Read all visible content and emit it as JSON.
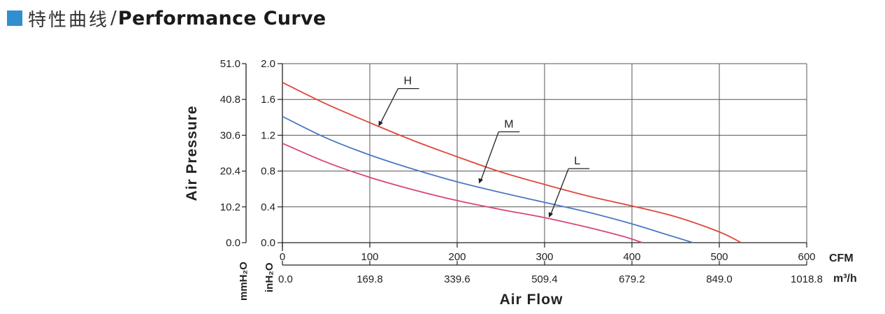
{
  "header": {
    "title_cn": "特性曲线",
    "separator": "/",
    "title_en": "Performance Curve",
    "accent_color": "#2f8fcf"
  },
  "chart_data": {
    "type": "line",
    "ylabel": "Air Pressure",
    "xlabel": "Air Flow",
    "x_unit_primary": "CFM",
    "x_unit_secondary": "m³/h",
    "y_unit_primary": "inH₂O",
    "y_unit_secondary": "mmH₂O",
    "xlim": [
      0,
      600
    ],
    "ylim": [
      0,
      2.0
    ],
    "x_ticks": [
      "0",
      "100",
      "200",
      "300",
      "400",
      "500",
      "600"
    ],
    "x_ticks_secondary": [
      "0.0",
      "169.8",
      "339.6",
      "509.4",
      "679.2",
      "849.0",
      "1018.8"
    ],
    "y_ticks": [
      "0.0",
      "0.4",
      "0.8",
      "1.2",
      "1.6",
      "2.0"
    ],
    "y_ticks_secondary": [
      "0.0",
      "10.2",
      "20.4",
      "30.6",
      "40.8",
      "51.0"
    ],
    "grid": true,
    "series": [
      {
        "name": "H",
        "color": "#e0473c",
        "x": [
          0,
          50,
          100,
          150,
          200,
          250,
          300,
          350,
          400,
          450,
          500,
          525
        ],
        "y": [
          1.79,
          1.55,
          1.34,
          1.14,
          0.96,
          0.79,
          0.65,
          0.52,
          0.41,
          0.29,
          0.12,
          0.0
        ]
      },
      {
        "name": "M",
        "color": "#4d78c4",
        "x": [
          0,
          50,
          100,
          150,
          200,
          250,
          300,
          350,
          400,
          440,
          470
        ],
        "y": [
          1.41,
          1.17,
          0.98,
          0.82,
          0.68,
          0.56,
          0.45,
          0.34,
          0.21,
          0.09,
          0.0
        ]
      },
      {
        "name": "L",
        "color": "#d9457a",
        "x": [
          0,
          50,
          100,
          150,
          200,
          250,
          300,
          350,
          390,
          412
        ],
        "y": [
          1.11,
          0.9,
          0.73,
          0.59,
          0.47,
          0.37,
          0.28,
          0.17,
          0.07,
          0.0
        ]
      }
    ],
    "labels": [
      {
        "series": "H",
        "text": "H",
        "at_x": 110,
        "at_y": 1.3
      },
      {
        "series": "M",
        "text": "M",
        "at_x": 225,
        "at_y": 0.66
      },
      {
        "series": "L",
        "text": "L",
        "at_x": 305,
        "at_y": 0.28
      }
    ]
  }
}
